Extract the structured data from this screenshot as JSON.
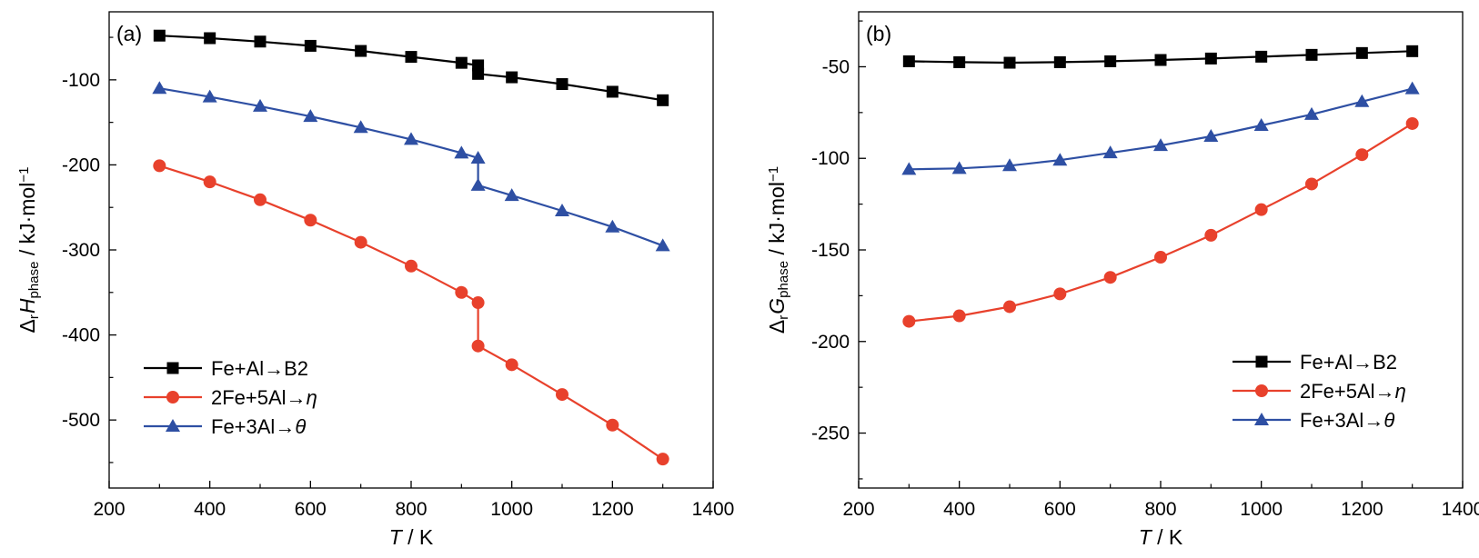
{
  "chart_data": [
    {
      "id": "a",
      "type": "line",
      "panel_label": "(a)",
      "title": "",
      "xlabel": {
        "var": "T",
        "unit": " / K"
      },
      "ylabel": {
        "prefix": "Δ",
        "sub1": "r",
        "var": "H",
        "sub2": "phase",
        "unit": " / kJ·mol",
        "sup": "−1"
      },
      "xlim": [
        200,
        1400
      ],
      "ylim": [
        -580,
        -20
      ],
      "xticks": [
        200,
        400,
        600,
        800,
        1000,
        1200,
        1400
      ],
      "yticks": [
        -100,
        -200,
        -300,
        -400,
        -500
      ],
      "xticklabels": [
        "200",
        "400",
        "600",
        "800",
        "1000",
        "1200",
        "1400"
      ],
      "yticklabels": [
        "-100",
        "-200",
        "-300",
        "-400",
        "-500"
      ],
      "grid": false,
      "legend_position": "lower-left",
      "series": [
        {
          "name": {
            "text": "Fe+Al→B2",
            "italic": ""
          },
          "color": "#000000",
          "marker": "square",
          "x": [
            300,
            400,
            500,
            600,
            700,
            800,
            900,
            933,
            933,
            1000,
            1100,
            1200,
            1300
          ],
          "y": [
            -48,
            -51,
            -55,
            -60,
            -66,
            -73,
            -80,
            -83,
            -93,
            -97,
            -105,
            -114,
            -124
          ]
        },
        {
          "name": {
            "text": "2Fe+5Al→",
            "italic": "η"
          },
          "color": "#e8412c",
          "marker": "circle",
          "x": [
            300,
            400,
            500,
            600,
            700,
            800,
            900,
            933,
            933,
            1000,
            1100,
            1200,
            1300
          ],
          "y": [
            -201,
            -220,
            -241,
            -265,
            -291,
            -319,
            -350,
            -362,
            -413,
            -435,
            -470,
            -506,
            -546
          ]
        },
        {
          "name": {
            "text": "Fe+3Al→",
            "italic": "θ"
          },
          "color": "#2e4fa3",
          "marker": "triangle",
          "x": [
            300,
            400,
            500,
            600,
            700,
            800,
            900,
            933,
            933,
            1000,
            1100,
            1200,
            1300
          ],
          "y": [
            -110,
            -120,
            -131,
            -143,
            -156,
            -170,
            -186,
            -192,
            -224,
            -236,
            -254,
            -273,
            -295
          ]
        }
      ]
    },
    {
      "id": "b",
      "type": "line",
      "panel_label": "(b)",
      "title": "",
      "xlabel": {
        "var": "T",
        "unit": " / K"
      },
      "ylabel": {
        "prefix": "Δ",
        "sub1": "r",
        "var": "G",
        "sub2": "phase",
        "unit": " / kJ·mol",
        "sup": "−1"
      },
      "xlim": [
        200,
        1400
      ],
      "ylim": [
        -280,
        -20
      ],
      "xticks": [
        200,
        400,
        600,
        800,
        1000,
        1200,
        1400
      ],
      "yticks": [
        -50,
        -100,
        -150,
        -200,
        -250
      ],
      "xticklabels": [
        "200",
        "400",
        "600",
        "800",
        "1000",
        "1200",
        "1400"
      ],
      "yticklabels": [
        "-50",
        "-100",
        "-150",
        "-200",
        "-250"
      ],
      "grid": false,
      "legend_position": "middle-right",
      "series": [
        {
          "name": {
            "text": "Fe+Al→B2",
            "italic": ""
          },
          "color": "#000000",
          "marker": "square",
          "x": [
            300,
            400,
            500,
            600,
            700,
            800,
            900,
            1000,
            1100,
            1200,
            1300
          ],
          "y": [
            -47,
            -47.5,
            -47.8,
            -47.5,
            -47,
            -46.3,
            -45.5,
            -44.5,
            -43.5,
            -42.5,
            -41.5
          ]
        },
        {
          "name": {
            "text": "2Fe+5Al→",
            "italic": "η"
          },
          "color": "#e8412c",
          "marker": "circle",
          "x": [
            300,
            400,
            500,
            600,
            700,
            800,
            900,
            1000,
            1100,
            1200,
            1300
          ],
          "y": [
            -189,
            -186,
            -181,
            -174,
            -165,
            -154,
            -142,
            -128,
            -114,
            -98,
            -81
          ]
        },
        {
          "name": {
            "text": "Fe+3Al→",
            "italic": "θ"
          },
          "color": "#2e4fa3",
          "marker": "triangle",
          "x": [
            300,
            400,
            500,
            600,
            700,
            800,
            900,
            1000,
            1100,
            1200,
            1300
          ],
          "y": [
            -106,
            -105.5,
            -104,
            -101,
            -97,
            -93,
            -88,
            -82,
            -76,
            -69,
            -62
          ]
        }
      ]
    }
  ]
}
